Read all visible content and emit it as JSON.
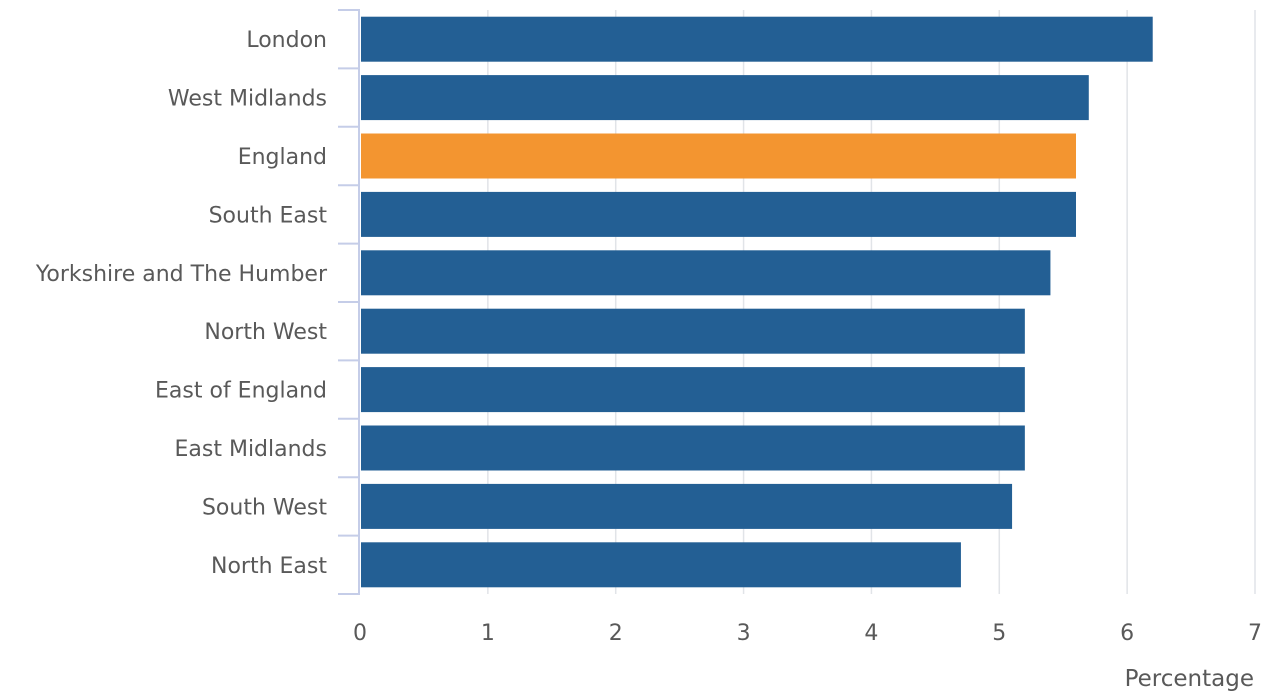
{
  "chart_data": {
    "type": "bar",
    "orientation": "horizontal",
    "categories": [
      "London",
      "West Midlands",
      "England",
      "South East",
      "Yorkshire and The Humber",
      "North West",
      "East of England",
      "East Midlands",
      "South West",
      "North East"
    ],
    "values": [
      6.2,
      5.7,
      5.6,
      5.6,
      5.4,
      5.2,
      5.2,
      5.2,
      5.1,
      4.7
    ],
    "highlight": "England",
    "colors": {
      "bar": "#235f94",
      "highlight": "#f39530",
      "grid": "#e1e4e8",
      "axis": "#c5cde8"
    },
    "xlabel": "Percentage",
    "xlim": [
      0,
      7
    ],
    "xticks": [
      "0",
      "1",
      "2",
      "3",
      "4",
      "5",
      "6",
      "7"
    ],
    "grid": "vertical"
  }
}
